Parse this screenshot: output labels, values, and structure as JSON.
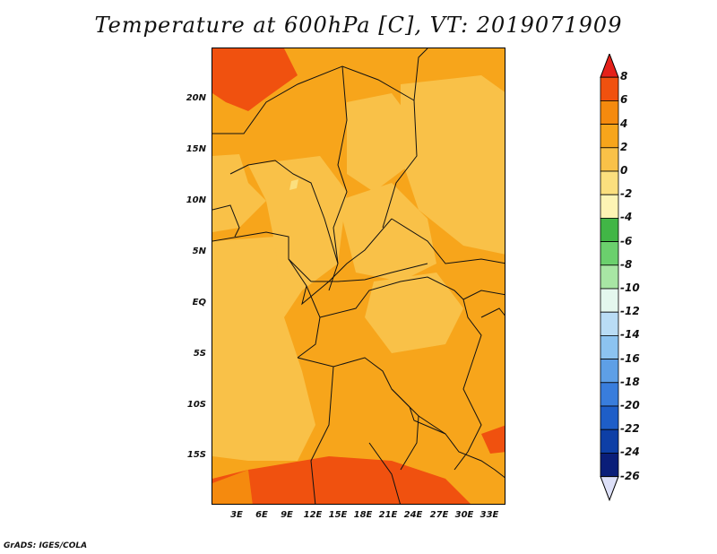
{
  "title": "Temperature at 600hPa [C], VT: 2019071909",
  "credit": "GrADS: IGES/COLA",
  "lat_labels": [
    "20N",
    "15N",
    "10N",
    "5N",
    "EQ",
    "5S",
    "10S",
    "15S"
  ],
  "lon_labels": [
    "3E",
    "6E",
    "9E",
    "12E",
    "15E",
    "18E",
    "21E",
    "24E",
    "27E",
    "30E",
    "33E"
  ],
  "colorbar": {
    "labels": [
      "8",
      "6",
      "4",
      "2",
      "0",
      "-2",
      "-4",
      "-6",
      "-8",
      "-10",
      "-12",
      "-14",
      "-16",
      "-18",
      "-20",
      "-22",
      "-24",
      "-26"
    ],
    "colors": [
      "#e5211a",
      "#f0510f",
      "#f58a0e",
      "#f7a51b",
      "#f9c148",
      "#fbdf7e",
      "#fdf4b4",
      "#41b646",
      "#6bd06d",
      "#a8e6a4",
      "#e4f7ee",
      "#b9dcf5",
      "#8cc3f0",
      "#5e9fe6",
      "#397ddc",
      "#1e5ec8",
      "#0e3fa6",
      "#0a1e79",
      "#dde0f8"
    ]
  },
  "colors": {
    "ocean_warm": "#f9c148",
    "land_orange": "#f7a51b",
    "hot": "#f0510f"
  }
}
